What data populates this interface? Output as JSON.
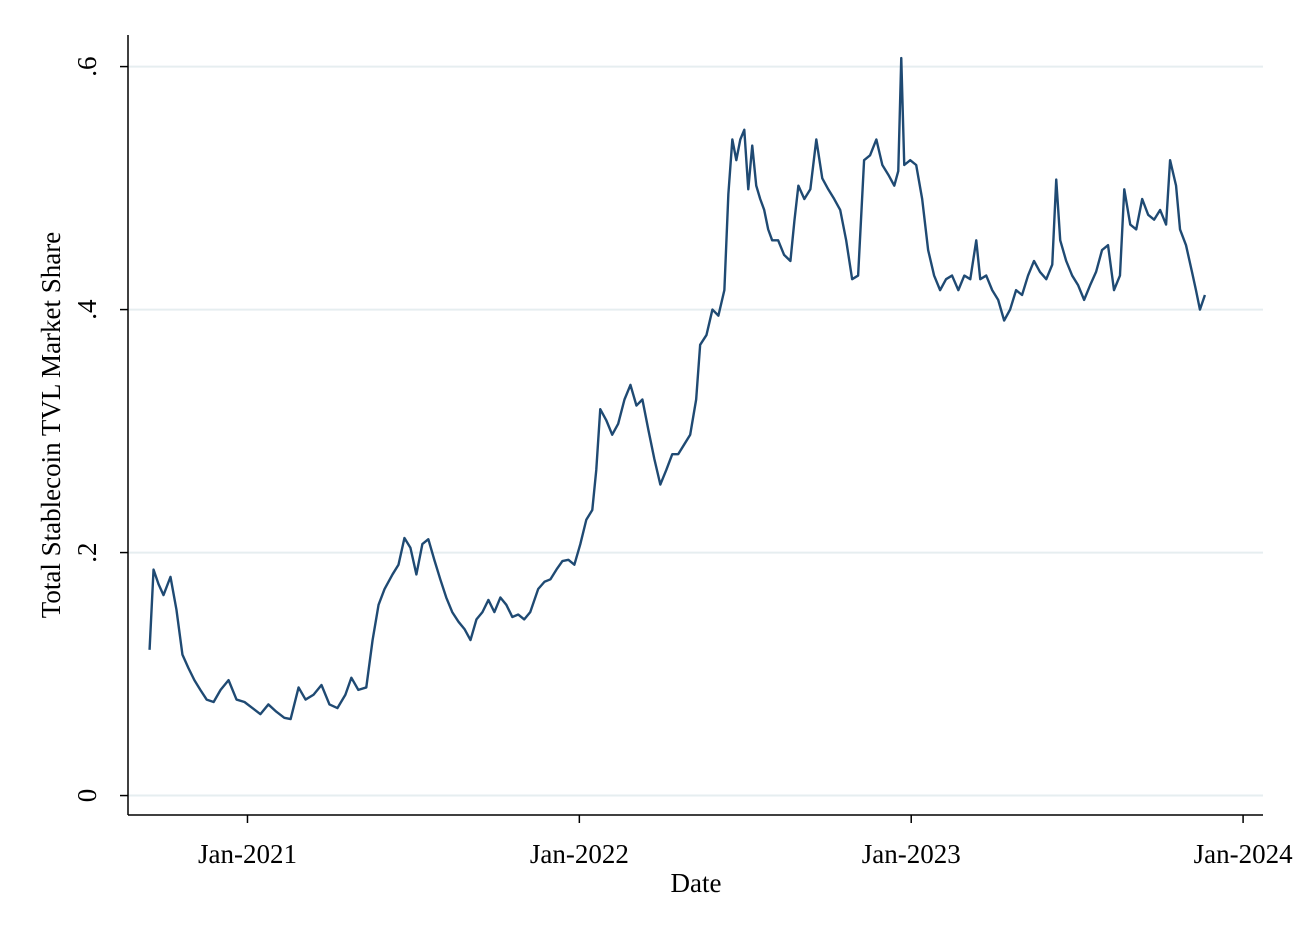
{
  "chart_data": {
    "type": "line",
    "xlabel": "Date",
    "ylabel": "Total Stablecoin TVL Market Share",
    "x": [
      2020.705,
      2020.717,
      2020.732,
      2020.747,
      2020.768,
      2020.786,
      2020.804,
      2020.822,
      2020.84,
      2020.858,
      2020.877,
      2020.898,
      2020.919,
      2020.943,
      2020.967,
      2020.991,
      2021.015,
      2021.039,
      2021.063,
      2021.087,
      2021.111,
      2021.13,
      2021.154,
      2021.175,
      2021.199,
      2021.223,
      2021.247,
      2021.271,
      2021.295,
      2021.313,
      2021.334,
      2021.358,
      2021.377,
      2021.395,
      2021.413,
      2021.437,
      2021.455,
      2021.473,
      2021.491,
      2021.509,
      2021.527,
      2021.545,
      2021.563,
      2021.581,
      2021.599,
      2021.617,
      2021.636,
      2021.654,
      2021.672,
      2021.69,
      2021.708,
      2021.726,
      2021.744,
      2021.762,
      2021.78,
      2021.798,
      2021.816,
      2021.834,
      2021.852,
      2021.876,
      2021.895,
      2021.913,
      2021.931,
      2021.949,
      2021.967,
      2021.985,
      2022.003,
      2022.021,
      2022.039,
      2022.051,
      2022.063,
      2022.081,
      2022.099,
      2022.117,
      2022.136,
      2022.154,
      2022.172,
      2022.19,
      2022.208,
      2022.226,
      2022.244,
      2022.262,
      2022.28,
      2022.298,
      2022.316,
      2022.334,
      2022.352,
      2022.364,
      2022.383,
      2022.401,
      2022.419,
      2022.437,
      2022.449,
      2022.461,
      2022.473,
      2022.485,
      2022.497,
      2022.509,
      2022.521,
      2022.533,
      2022.545,
      2022.557,
      2022.569,
      2022.581,
      2022.599,
      2022.617,
      2022.636,
      2022.648,
      2022.66,
      2022.678,
      2022.696,
      2022.714,
      2022.732,
      2022.75,
      2022.768,
      2022.786,
      2022.804,
      2022.822,
      2022.84,
      2022.858,
      2022.876,
      2022.895,
      2022.913,
      2022.931,
      2022.949,
      2022.961,
      2022.97,
      2022.979,
      2022.997,
      2023.015,
      2023.033,
      2023.051,
      2023.069,
      2023.087,
      2023.105,
      2023.123,
      2023.142,
      2023.16,
      2023.178,
      2023.196,
      2023.208,
      2023.226,
      2023.244,
      2023.262,
      2023.28,
      2023.298,
      2023.316,
      2023.334,
      2023.352,
      2023.37,
      2023.388,
      2023.407,
      2023.425,
      2023.437,
      2023.449,
      2023.467,
      2023.485,
      2023.503,
      2023.521,
      2023.539,
      2023.557,
      2023.575,
      2023.593,
      2023.611,
      2023.629,
      2023.642,
      2023.66,
      2023.678,
      2023.696,
      2023.714,
      2023.732,
      2023.75,
      2023.768,
      2023.78,
      2023.798,
      2023.81,
      2023.828,
      2023.846,
      2023.858,
      2023.87,
      2023.885
    ],
    "series": [
      {
        "color": "#1f4a73",
        "values": [
          0.12,
          0.186,
          0.174,
          0.165,
          0.18,
          0.153,
          0.116,
          0.105,
          0.095,
          0.087,
          0.079,
          0.077,
          0.087,
          0.095,
          0.079,
          0.077,
          0.072,
          0.067,
          0.075,
          0.069,
          0.064,
          0.063,
          0.089,
          0.079,
          0.083,
          0.091,
          0.075,
          0.072,
          0.083,
          0.097,
          0.087,
          0.089,
          0.128,
          0.157,
          0.17,
          0.182,
          0.19,
          0.212,
          0.204,
          0.182,
          0.207,
          0.211,
          0.194,
          0.178,
          0.163,
          0.151,
          0.143,
          0.137,
          0.128,
          0.145,
          0.151,
          0.161,
          0.151,
          0.163,
          0.157,
          0.147,
          0.149,
          0.145,
          0.151,
          0.17,
          0.176,
          0.178,
          0.186,
          0.193,
          0.194,
          0.19,
          0.207,
          0.227,
          0.235,
          0.268,
          0.318,
          0.309,
          0.297,
          0.306,
          0.326,
          0.338,
          0.321,
          0.326,
          0.301,
          0.277,
          0.256,
          0.268,
          0.281,
          0.281,
          0.289,
          0.297,
          0.326,
          0.371,
          0.379,
          0.4,
          0.395,
          0.416,
          0.495,
          0.54,
          0.523,
          0.54,
          0.548,
          0.499,
          0.535,
          0.502,
          0.491,
          0.482,
          0.466,
          0.457,
          0.457,
          0.445,
          0.44,
          0.473,
          0.502,
          0.491,
          0.499,
          0.54,
          0.508,
          0.499,
          0.491,
          0.482,
          0.457,
          0.425,
          0.428,
          0.523,
          0.527,
          0.54,
          0.519,
          0.511,
          0.502,
          0.514,
          0.607,
          0.519,
          0.523,
          0.519,
          0.491,
          0.449,
          0.428,
          0.416,
          0.425,
          0.428,
          0.416,
          0.428,
          0.425,
          0.457,
          0.425,
          0.428,
          0.416,
          0.408,
          0.391,
          0.4,
          0.416,
          0.412,
          0.428,
          0.44,
          0.431,
          0.425,
          0.437,
          0.507,
          0.457,
          0.44,
          0.428,
          0.42,
          0.408,
          0.42,
          0.431,
          0.449,
          0.453,
          0.416,
          0.428,
          0.499,
          0.47,
          0.466,
          0.491,
          0.478,
          0.474,
          0.482,
          0.47,
          0.523,
          0.502,
          0.466,
          0.453,
          0.431,
          0.416,
          0.4,
          0.412
        ]
      }
    ],
    "xlim": [
      2020.64,
      2024.06
    ],
    "xticks": [
      {
        "value": 2021,
        "label": "Jan-2021"
      },
      {
        "value": 2022,
        "label": "Jan-2022"
      },
      {
        "value": 2023,
        "label": "Jan-2023"
      },
      {
        "value": 2024,
        "label": "Jan-2024"
      }
    ],
    "ylim": [
      -0.016,
      0.626
    ],
    "yticks": [
      0,
      {
        "value": 0.2,
        "label": ".2"
      },
      {
        "value": 0.4,
        "label": ".4"
      },
      {
        "value": 0.6,
        "label": ".6"
      }
    ],
    "grid": true
  }
}
